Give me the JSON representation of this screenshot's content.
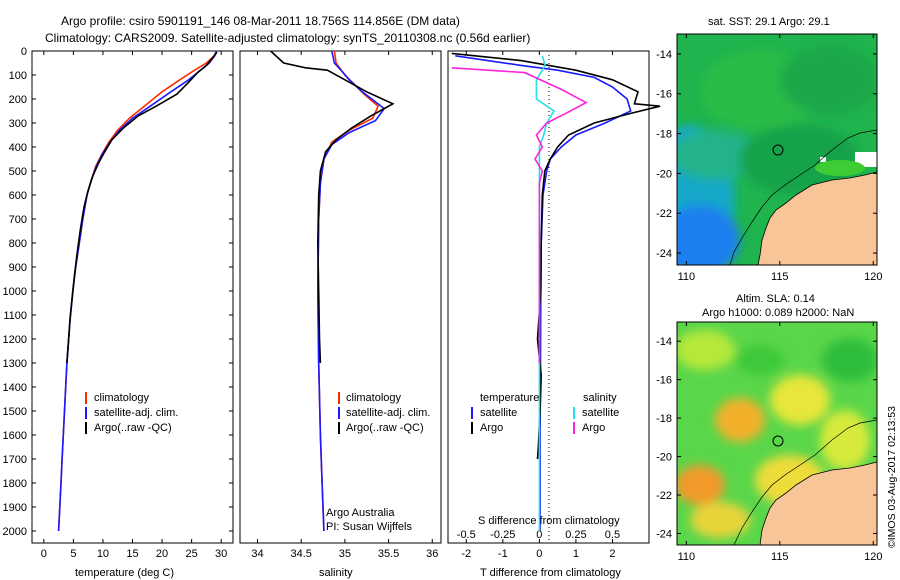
{
  "header": {
    "line1": "Argo profile: csiro 5901191_146 08-Mar-2011 18.756S 114.856E (DM data)",
    "line2": "Climatology: CARS2009. Satellite-adjusted climatology: synTS_20110308.nc (0.56d earlier)"
  },
  "colors": {
    "climatology": "#ff2a00",
    "satellite": "#1a1aff",
    "argo": "#000000",
    "sal_satellite": "#22dfe8",
    "sal_argo": "#ff22dd",
    "land": "#f7c597",
    "sst_green": "#1fb44d",
    "sla_green": "#5ad64a"
  },
  "chart_data": [
    {
      "type": "line",
      "panel": "temperature",
      "xlabel": "temperature (deg C)",
      "xlim": [
        -2,
        32
      ],
      "xticks": [
        0,
        5,
        10,
        15,
        20,
        25,
        30
      ],
      "ylim": [
        0,
        2050
      ],
      "yticks": [
        0,
        100,
        200,
        300,
        400,
        500,
        600,
        700,
        800,
        900,
        1000,
        1100,
        1200,
        1300,
        1400,
        1500,
        1600,
        1700,
        1800,
        1900,
        2000
      ],
      "legend": [
        "climatology",
        "satellite-adj. clim.",
        "Argo(..raw -QC)"
      ],
      "series": [
        {
          "name": "climatology",
          "color": "#ff2a00",
          "points": [
            [
              29.2,
              0
            ],
            [
              28.8,
              20
            ],
            [
              27.5,
              50
            ],
            [
              25.5,
              80
            ],
            [
              23,
              120
            ],
            [
              20,
              170
            ],
            [
              17,
              230
            ],
            [
              14.5,
              280
            ],
            [
              12.5,
              330
            ],
            [
              11,
              380
            ],
            [
              9.8,
              430
            ],
            [
              8.8,
              480
            ],
            [
              8,
              540
            ],
            [
              7.3,
              600
            ],
            [
              6.6,
              700
            ],
            [
              6,
              800
            ],
            [
              5.4,
              900
            ],
            [
              4.9,
              1000
            ],
            [
              4.5,
              1100
            ],
            [
              4.2,
              1200
            ],
            [
              3.9,
              1300
            ],
            [
              3.7,
              1400
            ],
            [
              3.5,
              1500
            ],
            [
              3.3,
              1600
            ],
            [
              3.1,
              1700
            ],
            [
              2.9,
              1800
            ],
            [
              2.7,
              1900
            ],
            [
              2.5,
              2000
            ]
          ]
        },
        {
          "name": "satellite-adj. clim.",
          "color": "#1a1aff",
          "points": [
            [
              29.2,
              0
            ],
            [
              28.9,
              20
            ],
            [
              28,
              50
            ],
            [
              26.5,
              80
            ],
            [
              24.5,
              120
            ],
            [
              21.5,
              170
            ],
            [
              18,
              230
            ],
            [
              15,
              280
            ],
            [
              12.8,
              330
            ],
            [
              11.2,
              380
            ],
            [
              9.9,
              430
            ],
            [
              8.9,
              480
            ],
            [
              8,
              540
            ],
            [
              7.3,
              600
            ],
            [
              6.6,
              700
            ],
            [
              6,
              800
            ],
            [
              5.4,
              900
            ],
            [
              4.9,
              1000
            ],
            [
              4.5,
              1100
            ],
            [
              4.2,
              1200
            ],
            [
              3.9,
              1300
            ],
            [
              3.7,
              1400
            ],
            [
              3.5,
              1500
            ],
            [
              3.3,
              1600
            ],
            [
              3.1,
              1700
            ],
            [
              2.9,
              1800
            ],
            [
              2.7,
              1900
            ],
            [
              2.5,
              2000
            ]
          ]
        },
        {
          "name": "Argo(..raw -QC)",
          "color": "#000000",
          "points": [
            [
              29.3,
              5
            ],
            [
              28.5,
              30
            ],
            [
              27.5,
              60
            ],
            [
              26,
              90
            ],
            [
              24.5,
              130
            ],
            [
              22.5,
              180
            ],
            [
              19,
              230
            ],
            [
              16,
              270
            ],
            [
              13.5,
              320
            ],
            [
              11.5,
              370
            ],
            [
              10.3,
              420
            ],
            [
              9.2,
              470
            ],
            [
              8.3,
              520
            ],
            [
              7.5,
              580
            ],
            [
              6.8,
              650
            ],
            [
              6.2,
              740
            ],
            [
              5.7,
              830
            ],
            [
              5.2,
              930
            ],
            [
              4.8,
              1030
            ],
            [
              4.4,
              1130
            ],
            [
              4.1,
              1230
            ],
            [
              3.9,
              1300
            ]
          ]
        }
      ]
    },
    {
      "type": "line",
      "panel": "salinity",
      "xlabel": "salinity",
      "xlim": [
        33.8,
        36.1
      ],
      "xticks": [
        34,
        34.5,
        35,
        35.5,
        36
      ],
      "ylim": [
        0,
        2050
      ],
      "legend": [
        "climatology",
        "satellite-adj. clim.",
        "Argo(..raw -QC)"
      ],
      "annotation": [
        "Argo Australia",
        "PI: Susan Wijffels"
      ],
      "series": [
        {
          "name": "climatology",
          "color": "#ff2a00",
          "points": [
            [
              34.88,
              0
            ],
            [
              34.9,
              50
            ],
            [
              35,
              100
            ],
            [
              35.22,
              180
            ],
            [
              35.38,
              230
            ],
            [
              35.32,
              280
            ],
            [
              35.05,
              330
            ],
            [
              34.85,
              380
            ],
            [
              34.76,
              450
            ],
            [
              34.72,
              550
            ],
            [
              34.7,
              700
            ],
            [
              34.69,
              1000
            ],
            [
              34.7,
              1300
            ],
            [
              34.72,
              1600
            ],
            [
              34.74,
              1800
            ],
            [
              34.76,
              2000
            ]
          ]
        },
        {
          "name": "satellite-adj. clim.",
          "color": "#1a1aff",
          "points": [
            [
              34.85,
              0
            ],
            [
              34.88,
              50
            ],
            [
              34.98,
              90
            ],
            [
              35.05,
              120
            ],
            [
              35.2,
              170
            ],
            [
              35.45,
              240
            ],
            [
              35.35,
              290
            ],
            [
              35.05,
              340
            ],
            [
              34.85,
              390
            ],
            [
              34.76,
              450
            ],
            [
              34.72,
              550
            ],
            [
              34.7,
              700
            ],
            [
              34.69,
              1000
            ],
            [
              34.7,
              1300
            ],
            [
              34.72,
              1600
            ],
            [
              34.74,
              1800
            ],
            [
              34.76,
              2000
            ]
          ]
        },
        {
          "name": "Argo(..raw -QC)",
          "color": "#000000",
          "points": [
            [
              34.15,
              0
            ],
            [
              34.3,
              50
            ],
            [
              34.55,
              70
            ],
            [
              34.8,
              80
            ],
            [
              35.0,
              120
            ],
            [
              35.25,
              170
            ],
            [
              35.55,
              220
            ],
            [
              35.3,
              270
            ],
            [
              35.08,
              320
            ],
            [
              34.9,
              370
            ],
            [
              34.78,
              420
            ],
            [
              34.72,
              500
            ],
            [
              34.7,
              600
            ],
            [
              34.69,
              800
            ],
            [
              34.7,
              1000
            ],
            [
              34.71,
              1200
            ],
            [
              34.72,
              1300
            ]
          ]
        }
      ]
    },
    {
      "type": "line",
      "panel": "difference",
      "xlabel": "T difference from climatology",
      "xlabel_top": "S difference from climatology",
      "xlim_T": [
        -2.5,
        3
      ],
      "xticks_T": [
        -2,
        -1,
        0,
        1,
        2
      ],
      "xlim_S": [
        -0.625,
        0.75
      ],
      "xticks_S": [
        -0.5,
        -0.25,
        0,
        0.25,
        0.5
      ],
      "ylim": [
        0,
        2050
      ],
      "legend_titles": [
        "temperature",
        "salinity"
      ],
      "legend": [
        "satellite",
        "Argo",
        "satellite",
        "Argo"
      ],
      "series": [
        {
          "name": "temperature satellite",
          "color": "#1a1aff",
          "axis": "T",
          "points": [
            [
              -2.3,
              20
            ],
            [
              -0.5,
              60
            ],
            [
              0.5,
              80
            ],
            [
              1.5,
              110
            ],
            [
              2.0,
              150
            ],
            [
              2.4,
              200
            ],
            [
              2.5,
              250
            ],
            [
              1.8,
              300
            ],
            [
              1.0,
              350
            ],
            [
              0.6,
              400
            ],
            [
              0.3,
              450
            ],
            [
              0.2,
              500
            ],
            [
              0.1,
              600
            ],
            [
              0.05,
              800
            ],
            [
              0.04,
              1000
            ],
            [
              0.03,
              1300
            ],
            [
              0.02,
              1600
            ],
            [
              0.02,
              1800
            ],
            [
              0.02,
              2000
            ]
          ]
        },
        {
          "name": "temperature Argo",
          "color": "#000000",
          "axis": "T",
          "points": [
            [
              -2.4,
              10
            ],
            [
              -0.5,
              40
            ],
            [
              1.0,
              80
            ],
            [
              2.0,
              120
            ],
            [
              2.7,
              170
            ],
            [
              2.6,
              220
            ],
            [
              3.3,
              230
            ],
            [
              2.5,
              260
            ],
            [
              1.5,
              300
            ],
            [
              0.8,
              350
            ],
            [
              0.5,
              400
            ],
            [
              0.3,
              450
            ],
            [
              0.15,
              500
            ],
            [
              0.08,
              600
            ],
            [
              0.05,
              800
            ],
            [
              0.04,
              1000
            ],
            [
              -0.05,
              1200
            ],
            [
              0.05,
              1350
            ],
            [
              0.02,
              1500
            ],
            [
              -0.03,
              1650
            ],
            [
              -0.05,
              1700
            ]
          ]
        },
        {
          "name": "salinity satellite",
          "color": "#22dfe8",
          "axis": "S",
          "points": [
            [
              0.02,
              20
            ],
            [
              0.04,
              60
            ],
            [
              -0.02,
              120
            ],
            [
              -0.02,
              200
            ],
            [
              0.1,
              250
            ],
            [
              0.05,
              300
            ],
            [
              0.03,
              350
            ],
            [
              0.0,
              400
            ],
            [
              0.0,
              450
            ],
            [
              0.0,
              500
            ],
            [
              0.0,
              600
            ],
            [
              0.0,
              700
            ],
            [
              0.0,
              800
            ],
            [
              0.0,
              900
            ],
            [
              0.0,
              1000
            ],
            [
              0.0,
              1100
            ],
            [
              0.0,
              1200
            ],
            [
              0.0,
              1300
            ],
            [
              0.0,
              1400
            ],
            [
              0.0,
              1500
            ],
            [
              0.0,
              1600
            ],
            [
              0.0,
              1700
            ],
            [
              0.0,
              1800
            ],
            [
              0.0,
              1900
            ],
            [
              0.0,
              2000
            ]
          ]
        },
        {
          "name": "salinity Argo",
          "color": "#ff22dd",
          "axis": "S",
          "points": [
            [
              -0.6,
              70
            ],
            [
              -0.35,
              80
            ],
            [
              -0.1,
              90
            ],
            [
              0.15,
              160
            ],
            [
              0.32,
              215
            ],
            [
              0.18,
              260
            ],
            [
              0.05,
              300
            ],
            [
              -0.02,
              350
            ],
            [
              0.02,
              400
            ],
            [
              -0.03,
              450
            ],
            [
              0.02,
              500
            ],
            [
              0.0,
              550
            ],
            [
              0.0,
              600
            ],
            [
              0.0,
              700
            ],
            [
              0.0,
              800
            ],
            [
              0.0,
              1000
            ],
            [
              0.0,
              1200
            ],
            [
              0.0,
              1300
            ]
          ]
        }
      ]
    },
    {
      "type": "map",
      "panel": "sst",
      "title": "sat. SST: 29.1  Argo: 29.1",
      "xlim": [
        109.5,
        120.2
      ],
      "ylim": [
        -24.6,
        -13
      ],
      "xticks": [
        110,
        115,
        120
      ],
      "yticks": [
        -14,
        -16,
        -18,
        -20,
        -22,
        -24
      ],
      "marker": [
        114.856,
        -18.756
      ]
    },
    {
      "type": "map",
      "panel": "sla",
      "title1": "Altim. SLA: 0.14",
      "title2": "Argo h1000: 0.089 h2000: NaN",
      "xlim": [
        109.5,
        120.2
      ],
      "ylim": [
        -24.6,
        -13
      ],
      "xticks": [
        110,
        115,
        120
      ],
      "yticks": [
        -14,
        -16,
        -18,
        -20,
        -22,
        -24
      ],
      "marker": [
        114.856,
        -18.756
      ]
    }
  ],
  "footer": {
    "stamp": "©IMOS 03-Aug-2017 02:13:53"
  }
}
